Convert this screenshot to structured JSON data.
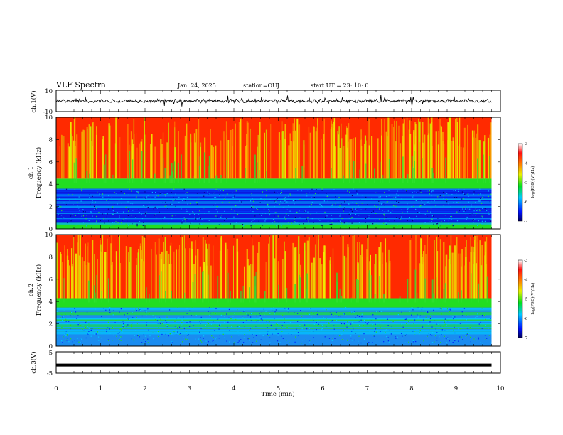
{
  "header": {
    "title": "VLF Spectra",
    "date": "Jan. 24, 2025",
    "station": "station=OUJ",
    "start": "start  UT  =   23: 10: 0"
  },
  "chart_data": [
    {
      "panel": "ch1-waveform",
      "type": "line",
      "ylabel": "ch.1(V)",
      "xlim": [
        0,
        10
      ],
      "ylim": [
        -10,
        10
      ],
      "yticks": [
        "10",
        "-10"
      ],
      "series_color": "#000000",
      "trace": "noisy waveform around 0 V with occasional spikes"
    },
    {
      "panel": "ch1-spectrogram",
      "type": "heatmap",
      "ylabel": "ch.1\nFrequency (kHz)",
      "ylabel_line1": "ch.1",
      "ylabel_line2": "Frequency (kHz)",
      "xlim": [
        0,
        10
      ],
      "ylim": [
        0,
        10
      ],
      "yticks": [
        "0",
        "2",
        "4",
        "6",
        "8",
        "10"
      ],
      "colorbar": {
        "label": "log(PSD)(V²/Hz)",
        "range": [
          -7,
          -3
        ],
        "ticks": [
          "-3",
          "-4",
          "-5",
          "-6",
          "-7"
        ]
      },
      "bands": [
        {
          "from_khz": 0,
          "to_khz": 0.6,
          "level": "mid"
        },
        {
          "from_khz": 0.6,
          "to_khz": 3.6,
          "level": "low"
        },
        {
          "from_khz": 3.6,
          "to_khz": 4.5,
          "level": "mid"
        },
        {
          "from_khz": 4.5,
          "to_khz": 10,
          "level": "high"
        }
      ]
    },
    {
      "panel": "ch2-spectrogram",
      "type": "heatmap",
      "ylabel_line1": "ch.2",
      "ylabel_line2": "Frequency (kHz)",
      "xlim": [
        0,
        10
      ],
      "ylim": [
        0,
        10
      ],
      "yticks": [
        "0",
        "2",
        "4",
        "6",
        "8",
        "10"
      ],
      "colorbar": {
        "label": "log(PSD)(V²/Hz)",
        "range": [
          -7,
          -3
        ],
        "ticks": [
          "-3",
          "-4",
          "-5",
          "-6",
          "-7"
        ]
      },
      "bands": [
        {
          "from_khz": 0,
          "to_khz": 3.5,
          "level": "mid-low"
        },
        {
          "from_khz": 3.5,
          "to_khz": 4.3,
          "level": "mid"
        },
        {
          "from_khz": 4.3,
          "to_khz": 10,
          "level": "high"
        }
      ]
    },
    {
      "panel": "ch3-waveform",
      "type": "line",
      "ylabel": "ch.3(V)",
      "xlim": [
        0,
        10
      ],
      "ylim": [
        -5,
        5
      ],
      "yticks": [
        "5",
        "-5"
      ],
      "level_value": -1.2,
      "series_color": "#000000"
    }
  ],
  "xaxis": {
    "label": "Time (min)",
    "ticks": [
      "0",
      "1",
      "2",
      "3",
      "4",
      "5",
      "6",
      "7",
      "8",
      "9",
      "10"
    ],
    "data_end": 9.8
  },
  "colors": {
    "high": "#ff2a00",
    "mid": "#22dd22",
    "low": "#0a1ae0",
    "axes": "#000000"
  }
}
